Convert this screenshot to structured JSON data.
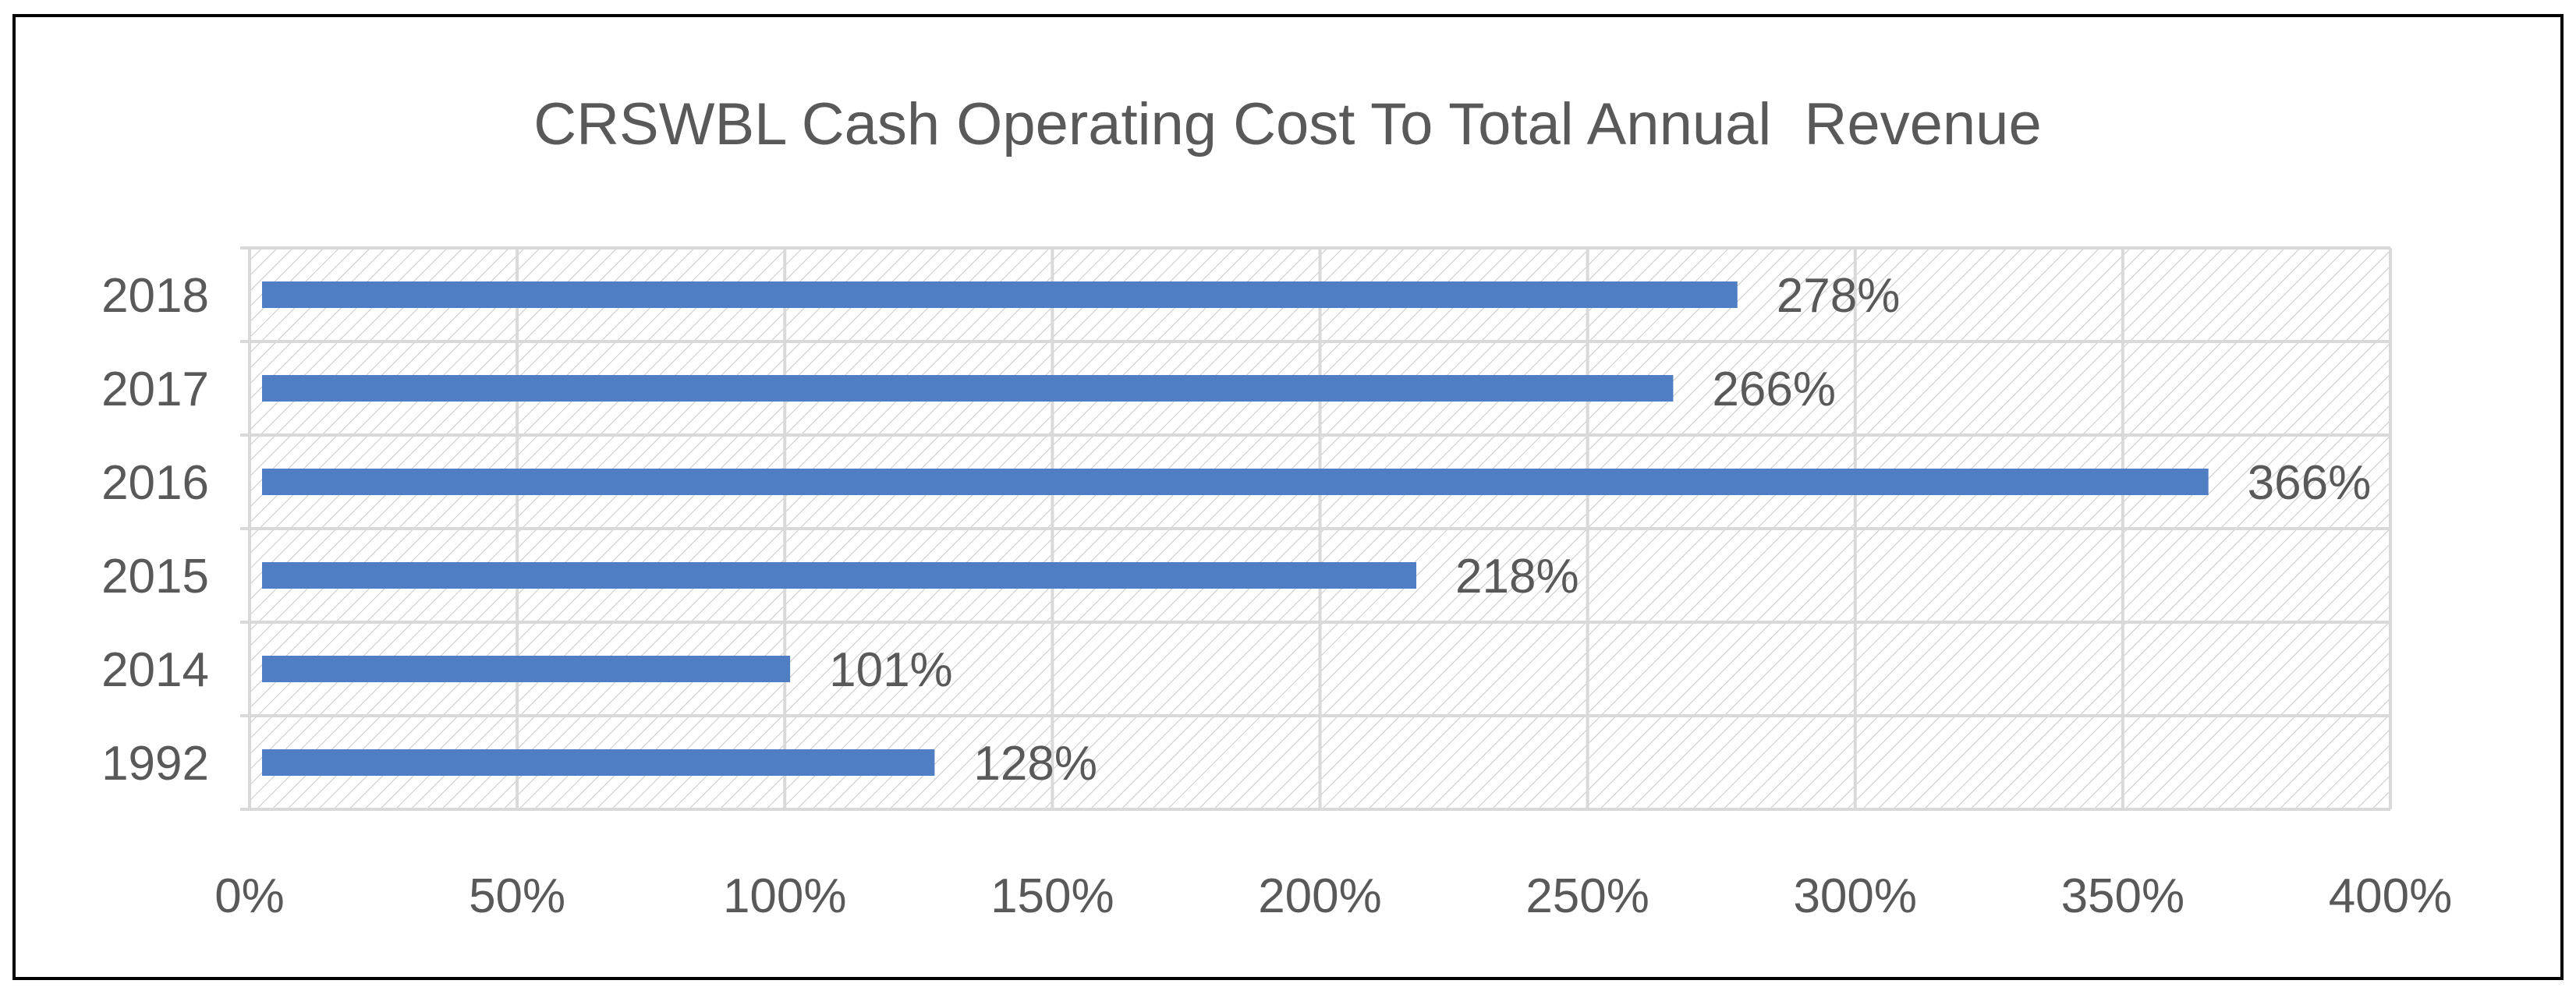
{
  "chart_data": {
    "type": "bar",
    "orientation": "horizontal",
    "title": "CRSWBL Cash Operating Cost To Total Annual  Revenue",
    "categories": [
      "1992",
      "2014",
      "2015",
      "2016",
      "2017",
      "2018"
    ],
    "values": [
      128,
      101,
      218,
      366,
      266,
      278
    ],
    "data_labels": [
      "128%",
      "101%",
      "218%",
      "366%",
      "266%",
      "278%"
    ],
    "x_ticks": [
      0,
      50,
      100,
      150,
      200,
      250,
      300,
      350,
      400
    ],
    "x_tick_labels": [
      "0%",
      "50%",
      "100%",
      "150%",
      "200%",
      "250%",
      "300%",
      "350%",
      "400%"
    ],
    "xlim": [
      0,
      400
    ],
    "xlabel": "",
    "ylabel": "",
    "grid": true,
    "legend": "none",
    "colors": {
      "bar": "#4f7fc2",
      "text": "#595959",
      "grid": "#d9d9d9",
      "hatch": "#c8c8c8",
      "border": "#000000"
    }
  }
}
